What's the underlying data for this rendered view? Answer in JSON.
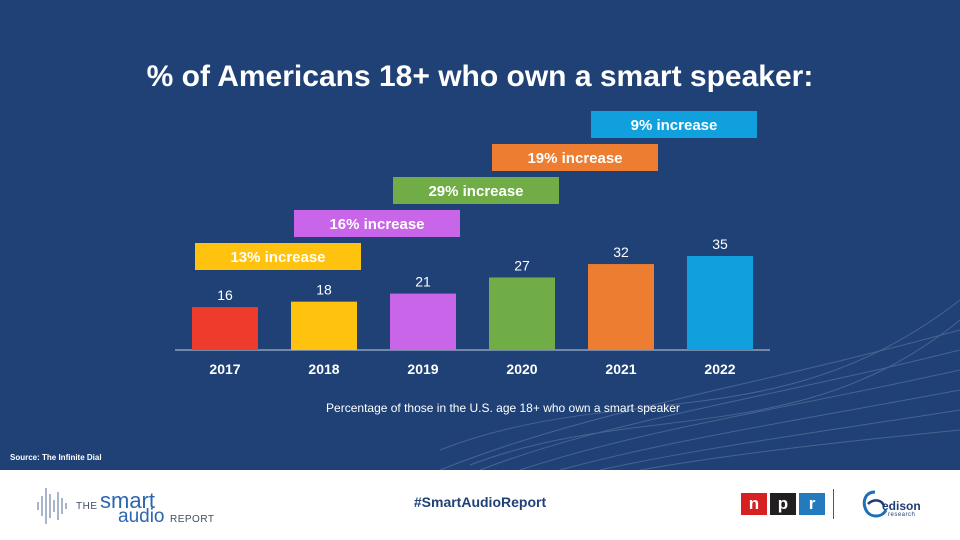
{
  "title": "% of Americans 18+ who own a smart speaker:",
  "chart_data": {
    "type": "bar",
    "title": "% of Americans 18+ who own a smart speaker:",
    "categories": [
      "2017",
      "2018",
      "2019",
      "2020",
      "2021",
      "2022"
    ],
    "values": [
      16,
      18,
      21,
      27,
      32,
      35
    ],
    "colors": [
      "#ef3b2c",
      "#ffc20e",
      "#c965e8",
      "#70ad47",
      "#ed7d31",
      "#10a0de"
    ],
    "ylim": [
      0,
      35
    ],
    "grid": false,
    "annotations": [
      {
        "label": "13% increase",
        "color": "#ffc20e"
      },
      {
        "label": "16% increase",
        "color": "#c965e8"
      },
      {
        "label": "29% increase",
        "color": "#70ad47"
      },
      {
        "label": "19% increase",
        "color": "#ed7d31"
      },
      {
        "label": "9% increase",
        "color": "#10a0de"
      }
    ]
  },
  "caption": "Percentage of those in the U.S. age 18+ who own a smart speaker",
  "source": "Source: The Infinite Dial",
  "footer": {
    "brand": {
      "the": "THE",
      "smart": "smart",
      "audio": "audio",
      "report": "REPORT"
    },
    "hashtag": "#SmartAudioReport",
    "npr_letters": [
      "n",
      "p",
      "r"
    ],
    "npr_colors": [
      "#d62021",
      "#231f20",
      "#237bbd"
    ],
    "edison_name": "edison",
    "edison_sub": "research"
  }
}
